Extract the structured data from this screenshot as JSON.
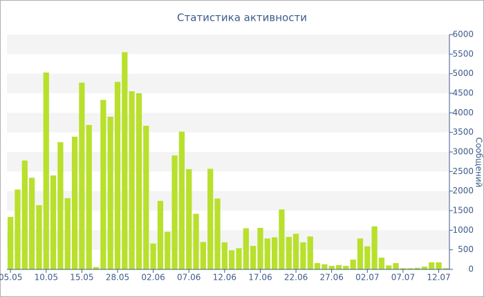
{
  "chart_data": {
    "type": "bar",
    "title": "Статистика активности",
    "y_label": "Сообщений",
    "categories": [
      "05.05",
      null,
      null,
      null,
      null,
      "10.05",
      null,
      null,
      null,
      null,
      "15.05",
      null,
      null,
      null,
      null,
      "28.05",
      null,
      null,
      null,
      null,
      "02.06",
      null,
      null,
      null,
      null,
      "07.06",
      null,
      null,
      null,
      null,
      "12.06",
      null,
      null,
      null,
      null,
      "17.06",
      null,
      null,
      null,
      null,
      "22.06",
      null,
      null,
      null,
      null,
      "27.06",
      null,
      null,
      null,
      null,
      "02.07",
      null,
      null,
      null,
      null,
      "07.07",
      null,
      null,
      null,
      null,
      "12.07",
      null
    ],
    "values": [
      1340,
      2040,
      2780,
      2340,
      1640,
      5030,
      2400,
      3250,
      1820,
      3390,
      4770,
      3690,
      60,
      4330,
      3900,
      4790,
      5550,
      4550,
      4500,
      3670,
      660,
      1750,
      960,
      2910,
      3520,
      2560,
      1420,
      700,
      2570,
      1810,
      690,
      490,
      540,
      1050,
      600,
      1060,
      790,
      820,
      1530,
      830,
      910,
      690,
      840,
      160,
      130,
      90,
      110,
      90,
      250,
      790,
      590,
      1100,
      300,
      100,
      160,
      30,
      30,
      40,
      70,
      180,
      180,
      30
    ],
    "color": "#b8e02c",
    "ylim": [
      0,
      6000
    ],
    "yticks": [
      0,
      500,
      1000,
      1500,
      2000,
      2500,
      3000,
      3500,
      4000,
      4500,
      5000,
      5500,
      6000
    ],
    "grid": true
  }
}
